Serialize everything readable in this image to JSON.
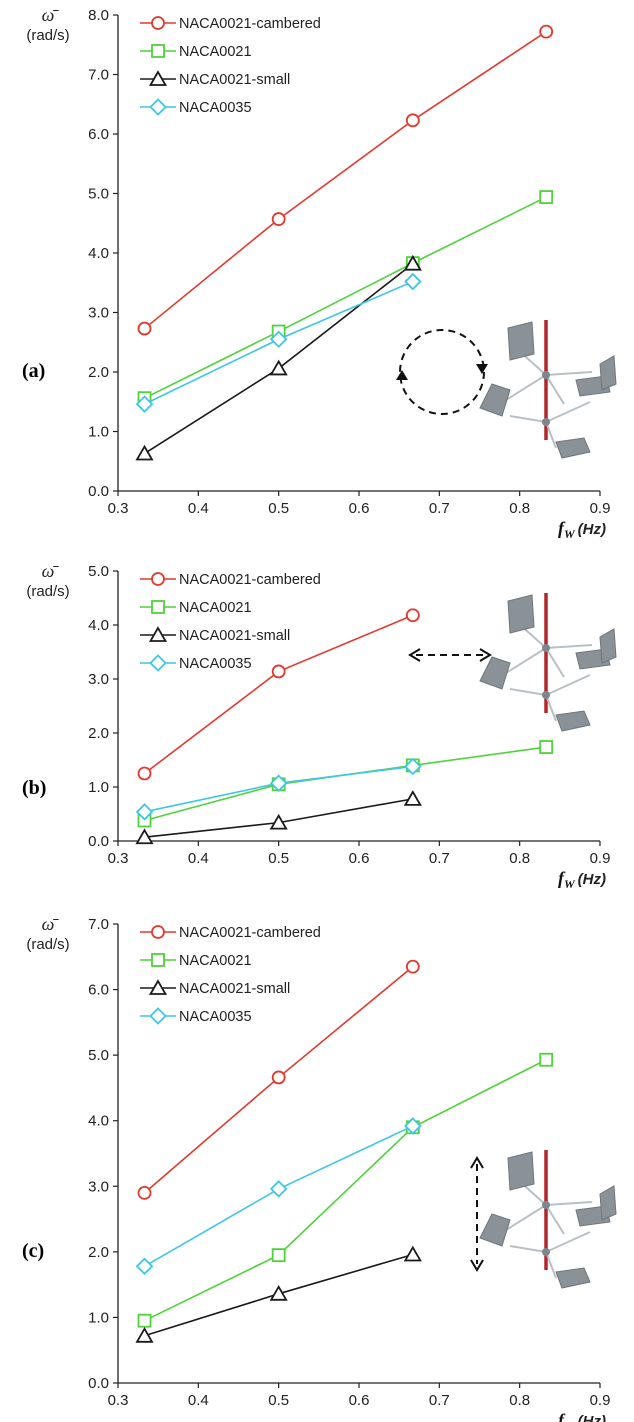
{
  "colors": {
    "NACA0021-cambered": "#e03a2f",
    "NACA0021": "#4fd23a",
    "NACA0021-small": "#1a1a1a",
    "NACA0035": "#3ec6e6",
    "axis": "#222222",
    "turbine_blade": "#8a9298",
    "turbine_shaft": "#b3262a"
  },
  "chart_data": [
    {
      "type": "line",
      "panel_label": "(a)",
      "ylabel_symbol": "ω̄",
      "ylabel_unit": "(rad/s)",
      "xlabel_symbol": "f",
      "xlabel_subscript": "W",
      "xlabel_unit": "(Hz)",
      "xlim": [
        0.3,
        0.9
      ],
      "ylim": [
        0.0,
        8.0
      ],
      "x_ticks": [
        "0.3",
        "0.4",
        "0.5",
        "0.6",
        "0.7",
        "0.8",
        "0.9"
      ],
      "y_ticks": [
        "0.0",
        "1.0",
        "2.0",
        "3.0",
        "4.0",
        "5.0",
        "6.0",
        "7.0",
        "8.0"
      ],
      "legend_position": "top-left",
      "inset_icon": "circular-arrow-icon",
      "series": [
        {
          "name": "NACA0021-cambered",
          "marker": "circle",
          "x": [
            0.333,
            0.5,
            0.667,
            0.833
          ],
          "y": [
            2.73,
            4.57,
            6.23,
            7.72
          ]
        },
        {
          "name": "NACA0021",
          "marker": "square",
          "x": [
            0.333,
            0.5,
            0.667,
            0.833
          ],
          "y": [
            1.56,
            2.68,
            3.83,
            4.94
          ]
        },
        {
          "name": "NACA0021-small",
          "marker": "triangle",
          "x": [
            0.333,
            0.5,
            0.667
          ],
          "y": [
            0.63,
            2.06,
            3.82
          ]
        },
        {
          "name": "NACA0035",
          "marker": "diamond",
          "x": [
            0.333,
            0.5,
            0.667
          ],
          "y": [
            1.46,
            2.55,
            3.52
          ]
        }
      ]
    },
    {
      "type": "line",
      "panel_label": "(b)",
      "ylabel_symbol": "ω̄",
      "ylabel_unit": "(rad/s)",
      "xlabel_symbol": "f",
      "xlabel_subscript": "W",
      "xlabel_unit": "(Hz)",
      "xlim": [
        0.3,
        0.9
      ],
      "ylim": [
        0.0,
        5.0
      ],
      "x_ticks": [
        "0.3",
        "0.4",
        "0.5",
        "0.6",
        "0.7",
        "0.8",
        "0.9"
      ],
      "y_ticks": [
        "0.0",
        "1.0",
        "2.0",
        "3.0",
        "4.0",
        "5.0"
      ],
      "legend_position": "top-left",
      "inset_icon": "horizontal-double-arrow-icon",
      "series": [
        {
          "name": "NACA0021-cambered",
          "marker": "circle",
          "x": [
            0.333,
            0.5,
            0.667
          ],
          "y": [
            1.25,
            3.14,
            4.18
          ]
        },
        {
          "name": "NACA0021",
          "marker": "square",
          "x": [
            0.333,
            0.5,
            0.667,
            0.833
          ],
          "y": [
            0.38,
            1.05,
            1.4,
            1.74
          ]
        },
        {
          "name": "NACA0021-small",
          "marker": "triangle",
          "x": [
            0.333,
            0.5,
            0.667
          ],
          "y": [
            0.07,
            0.34,
            0.78
          ]
        },
        {
          "name": "NACA0035",
          "marker": "diamond",
          "x": [
            0.333,
            0.5,
            0.667
          ],
          "y": [
            0.54,
            1.07,
            1.38
          ]
        }
      ]
    },
    {
      "type": "line",
      "panel_label": "(c)",
      "ylabel_symbol": "ω̄",
      "ylabel_unit": "(rad/s)",
      "xlabel_symbol": "f",
      "xlabel_subscript": "W",
      "xlabel_unit": "(Hz)",
      "xlim": [
        0.3,
        0.9
      ],
      "ylim": [
        0.0,
        7.0
      ],
      "x_ticks": [
        "0.3",
        "0.4",
        "0.5",
        "0.6",
        "0.7",
        "0.8",
        "0.9"
      ],
      "y_ticks": [
        "0.0",
        "1.0",
        "2.0",
        "3.0",
        "4.0",
        "5.0",
        "6.0",
        "7.0"
      ],
      "legend_position": "top-left",
      "inset_icon": "vertical-double-arrow-icon",
      "series": [
        {
          "name": "NACA0021-cambered",
          "marker": "circle",
          "x": [
            0.333,
            0.5,
            0.667
          ],
          "y": [
            2.9,
            4.66,
            6.35
          ]
        },
        {
          "name": "NACA0021",
          "marker": "square",
          "x": [
            0.333,
            0.5,
            0.667,
            0.833
          ],
          "y": [
            0.95,
            1.95,
            3.9,
            4.93
          ]
        },
        {
          "name": "NACA0021-small",
          "marker": "triangle",
          "x": [
            0.333,
            0.5,
            0.667
          ],
          "y": [
            0.72,
            1.36,
            1.96
          ]
        },
        {
          "name": "NACA0035",
          "marker": "diamond",
          "x": [
            0.333,
            0.5,
            0.667
          ],
          "y": [
            1.78,
            2.96,
            3.92
          ]
        }
      ]
    }
  ]
}
